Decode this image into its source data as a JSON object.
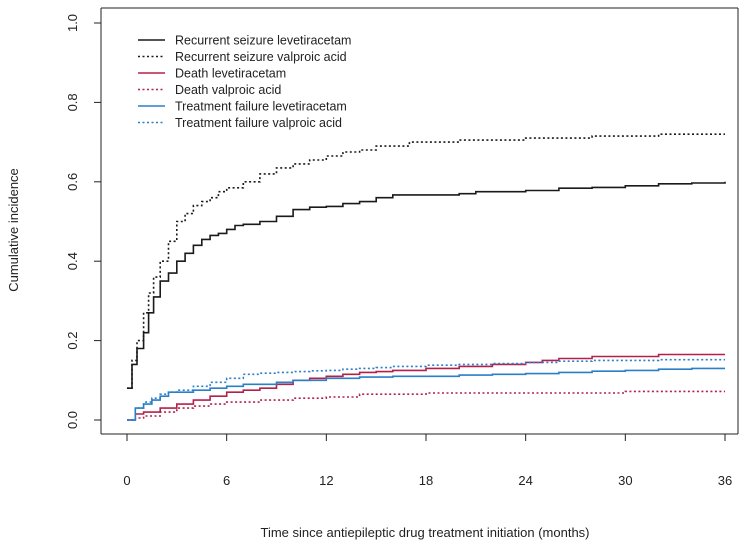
{
  "chart_data": {
    "type": "line",
    "title": "",
    "xlabel": "Time since antiepileptic drug treatment initiation (months)",
    "ylabel": "Cumulative incidence",
    "xlim": [
      0,
      36
    ],
    "ylim": [
      0,
      1.0
    ],
    "x_ticks": [
      0,
      6,
      12,
      18,
      24,
      30,
      36
    ],
    "x_tick_labels": [
      "0",
      "6",
      "12",
      "18",
      "24",
      "30",
      "36"
    ],
    "y_ticks": [
      0,
      0.2,
      0.4,
      0.6,
      0.8,
      1.0
    ],
    "y_tick_labels": [
      "0.0",
      "0.2",
      "0.4",
      "0.6",
      "0.8",
      "1.0"
    ],
    "grid": false,
    "legend_position": "top-left",
    "series": [
      {
        "name": "Recurrent seizure levetiracetam",
        "color": "#1a1a1a",
        "style": "solid",
        "points": [
          [
            0,
            0.08
          ],
          [
            0.3,
            0.14
          ],
          [
            0.6,
            0.18
          ],
          [
            1,
            0.22
          ],
          [
            1.3,
            0.27
          ],
          [
            1.6,
            0.31
          ],
          [
            2,
            0.35
          ],
          [
            2.5,
            0.37
          ],
          [
            3,
            0.4
          ],
          [
            3.5,
            0.42
          ],
          [
            4,
            0.44
          ],
          [
            4.5,
            0.455
          ],
          [
            5,
            0.465
          ],
          [
            5.5,
            0.47
          ],
          [
            6,
            0.48
          ],
          [
            6.5,
            0.49
          ],
          [
            7,
            0.493
          ],
          [
            8,
            0.5
          ],
          [
            9,
            0.513
          ],
          [
            10,
            0.53
          ],
          [
            11,
            0.536
          ],
          [
            12,
            0.538
          ],
          [
            13,
            0.545
          ],
          [
            14,
            0.55
          ],
          [
            15,
            0.56
          ],
          [
            16,
            0.567
          ],
          [
            17,
            0.567
          ],
          [
            18,
            0.567
          ],
          [
            20,
            0.57
          ],
          [
            21,
            0.575
          ],
          [
            24,
            0.578
          ],
          [
            26,
            0.584
          ],
          [
            28,
            0.586
          ],
          [
            30,
            0.59
          ],
          [
            32,
            0.595
          ],
          [
            34,
            0.597
          ],
          [
            36,
            0.6
          ]
        ]
      },
      {
        "name": "Recurrent seizure valproic acid",
        "color": "#1a1a1a",
        "style": "dotted",
        "points": [
          [
            0,
            0.08
          ],
          [
            0.3,
            0.15
          ],
          [
            0.6,
            0.2
          ],
          [
            1,
            0.27
          ],
          [
            1.3,
            0.32
          ],
          [
            1.6,
            0.36
          ],
          [
            2,
            0.4
          ],
          [
            2.5,
            0.45
          ],
          [
            3,
            0.5
          ],
          [
            3.5,
            0.52
          ],
          [
            4,
            0.54
          ],
          [
            4.5,
            0.55
          ],
          [
            5,
            0.56
          ],
          [
            5.5,
            0.575
          ],
          [
            6,
            0.585
          ],
          [
            7,
            0.6
          ],
          [
            8,
            0.62
          ],
          [
            9,
            0.635
          ],
          [
            10,
            0.645
          ],
          [
            11,
            0.655
          ],
          [
            12,
            0.665
          ],
          [
            13,
            0.675
          ],
          [
            14,
            0.68
          ],
          [
            15,
            0.69
          ],
          [
            16,
            0.69
          ],
          [
            17,
            0.7
          ],
          [
            18,
            0.7
          ],
          [
            20,
            0.705
          ],
          [
            22,
            0.705
          ],
          [
            24,
            0.71
          ],
          [
            26,
            0.71
          ],
          [
            28,
            0.715
          ],
          [
            30,
            0.715
          ],
          [
            32,
            0.72
          ],
          [
            34,
            0.72
          ],
          [
            36,
            0.72
          ]
        ]
      },
      {
        "name": "Death levetiracetam",
        "color": "#b5204a",
        "style": "solid",
        "points": [
          [
            0,
            0.0
          ],
          [
            0.5,
            0.015
          ],
          [
            1,
            0.02
          ],
          [
            2,
            0.03
          ],
          [
            3,
            0.04
          ],
          [
            4,
            0.05
          ],
          [
            5,
            0.06
          ],
          [
            6,
            0.07
          ],
          [
            7,
            0.075
          ],
          [
            8,
            0.08
          ],
          [
            9,
            0.09
          ],
          [
            10,
            0.1
          ],
          [
            11,
            0.105
          ],
          [
            12,
            0.11
          ],
          [
            13,
            0.115
          ],
          [
            14,
            0.12
          ],
          [
            15,
            0.122
          ],
          [
            16,
            0.125
          ],
          [
            18,
            0.13
          ],
          [
            20,
            0.135
          ],
          [
            22,
            0.14
          ],
          [
            24,
            0.145
          ],
          [
            25,
            0.15
          ],
          [
            26,
            0.155
          ],
          [
            28,
            0.16
          ],
          [
            30,
            0.16
          ],
          [
            32,
            0.165
          ],
          [
            36,
            0.165
          ]
        ]
      },
      {
        "name": "Death valproic acid",
        "color": "#b5204a",
        "style": "dotted",
        "points": [
          [
            0,
            0.0
          ],
          [
            0.5,
            0.005
          ],
          [
            1,
            0.01
          ],
          [
            2,
            0.02
          ],
          [
            3,
            0.03
          ],
          [
            4,
            0.035
          ],
          [
            5,
            0.04
          ],
          [
            6,
            0.045
          ],
          [
            7,
            0.045
          ],
          [
            8,
            0.05
          ],
          [
            10,
            0.055
          ],
          [
            12,
            0.058
          ],
          [
            14,
            0.065
          ],
          [
            16,
            0.065
          ],
          [
            18,
            0.068
          ],
          [
            20,
            0.068
          ],
          [
            24,
            0.068
          ],
          [
            28,
            0.068
          ],
          [
            30,
            0.072
          ],
          [
            36,
            0.072
          ]
        ]
      },
      {
        "name": "Treatment failure levetiracetam",
        "color": "#2a7fc9",
        "style": "solid",
        "points": [
          [
            0,
            0.0
          ],
          [
            0.5,
            0.03
          ],
          [
            1,
            0.04
          ],
          [
            1.5,
            0.05
          ],
          [
            2,
            0.06
          ],
          [
            2.5,
            0.07
          ],
          [
            3,
            0.07
          ],
          [
            4,
            0.075
          ],
          [
            5,
            0.08
          ],
          [
            6,
            0.085
          ],
          [
            7,
            0.09
          ],
          [
            8,
            0.09
          ],
          [
            9,
            0.095
          ],
          [
            10,
            0.1
          ],
          [
            11,
            0.1
          ],
          [
            12,
            0.105
          ],
          [
            14,
            0.108
          ],
          [
            16,
            0.11
          ],
          [
            18,
            0.11
          ],
          [
            20,
            0.113
          ],
          [
            22,
            0.115
          ],
          [
            24,
            0.117
          ],
          [
            26,
            0.12
          ],
          [
            28,
            0.123
          ],
          [
            30,
            0.125
          ],
          [
            32,
            0.128
          ],
          [
            34,
            0.13
          ],
          [
            36,
            0.13
          ]
        ]
      },
      {
        "name": "Treatment failure valproic acid",
        "color": "#2a7fc9",
        "style": "dotted",
        "points": [
          [
            0,
            0.0
          ],
          [
            0.5,
            0.03
          ],
          [
            1,
            0.045
          ],
          [
            1.5,
            0.055
          ],
          [
            2,
            0.065
          ],
          [
            2.5,
            0.07
          ],
          [
            3,
            0.075
          ],
          [
            4,
            0.085
          ],
          [
            5,
            0.095
          ],
          [
            6,
            0.105
          ],
          [
            7,
            0.115
          ],
          [
            8,
            0.118
          ],
          [
            9,
            0.12
          ],
          [
            10,
            0.122
          ],
          [
            11,
            0.124
          ],
          [
            12,
            0.125
          ],
          [
            13,
            0.128
          ],
          [
            14,
            0.13
          ],
          [
            15,
            0.132
          ],
          [
            16,
            0.135
          ],
          [
            18,
            0.138
          ],
          [
            20,
            0.14
          ],
          [
            22,
            0.142
          ],
          [
            24,
            0.145
          ],
          [
            26,
            0.148
          ],
          [
            28,
            0.15
          ],
          [
            30,
            0.15
          ],
          [
            32,
            0.152
          ],
          [
            36,
            0.152
          ]
        ]
      }
    ]
  }
}
